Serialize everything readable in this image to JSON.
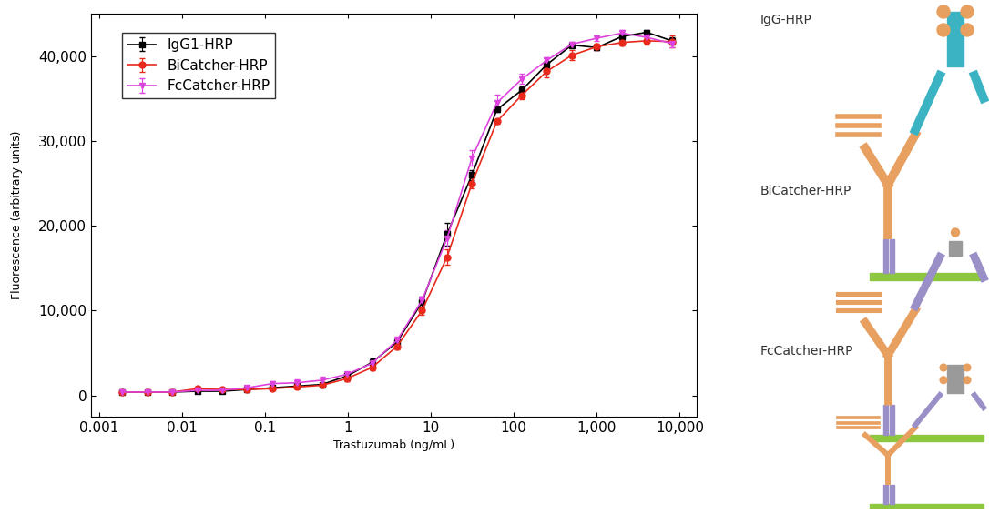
{
  "chart_data": {
    "type": "line",
    "x_label": "Trastuzumab (ng/mL)",
    "y_label": "Fluorescence (arbitrary units)",
    "x": [
      0.00190735,
      0.0038147,
      0.00762939,
      0.0152588,
      0.0305176,
      0.0610352,
      0.12207,
      0.244141,
      0.488281,
      0.976563,
      1.95313,
      3.90625,
      7.8125,
      15.625,
      31.25,
      62.5,
      125,
      250,
      500,
      1000,
      2000,
      4000,
      8000
    ],
    "series": [
      {
        "name": "IgG1-HRP",
        "color": "#000000",
        "marker": "square",
        "values": [
          400,
          400,
          400,
          500,
          500,
          700,
          900,
          1100,
          1300,
          2300,
          3900,
          6300,
          11000,
          19000,
          26000,
          33700,
          36000,
          39000,
          41300,
          41000,
          42300,
          42800,
          41800
        ],
        "errors": [
          100,
          100,
          100,
          100,
          100,
          150,
          150,
          200,
          300,
          300,
          500,
          400,
          600,
          1300,
          600,
          300,
          400,
          400,
          300,
          300,
          400,
          300,
          400
        ]
      },
      {
        "name": "BiCatcher-HRP",
        "color": "#e8291c",
        "marker": "circle",
        "values": [
          400,
          400,
          400,
          800,
          700,
          700,
          800,
          1000,
          1200,
          2000,
          3300,
          5800,
          10000,
          16300,
          25000,
          32300,
          35400,
          38200,
          40100,
          41100,
          41600,
          41800,
          41700
        ],
        "errors": [
          100,
          100,
          100,
          100,
          100,
          100,
          150,
          200,
          200,
          300,
          300,
          400,
          500,
          900,
          600,
          300,
          500,
          700,
          600,
          400,
          400,
          400,
          700
        ]
      },
      {
        "name": "FcCatcher-HRP",
        "color": "#dd44dd",
        "marker": "triangle_down",
        "values": [
          400,
          400,
          400,
          600,
          600,
          900,
          1400,
          1500,
          1800,
          2500,
          3800,
          6500,
          11200,
          18500,
          28000,
          34500,
          37300,
          39500,
          41400,
          42100,
          42700,
          42200,
          41500
        ],
        "errors": [
          100,
          100,
          100,
          100,
          100,
          200,
          300,
          400,
          400,
          300,
          400,
          400,
          500,
          1000,
          900,
          1000,
          600,
          300,
          300,
          300,
          400,
          300,
          500
        ]
      }
    ],
    "log": "x",
    "xlim": [
      0.0008,
      16000
    ],
    "xticks": [
      0.001,
      0.01,
      0.1,
      1,
      10,
      100,
      {
        "value": 1000,
        "label": "1,000"
      },
      {
        "value": 10000,
        "label": "10,000"
      }
    ],
    "ylim": [
      -2500,
      45000
    ],
    "yticks": [
      0,
      {
        "value": 10000,
        "label": "10,000"
      },
      {
        "value": 20000,
        "label": "20,000"
      },
      {
        "value": 30000,
        "label": "30,000"
      },
      {
        "value": 40000,
        "label": "40,000"
      }
    ],
    "grid": false,
    "legend": "upper left"
  },
  "schematic": {
    "panels": [
      {
        "label": "IgG-HRP"
      },
      {
        "label": "BiCatcher-HRP"
      },
      {
        "label": "FcCatcher-HRP"
      }
    ]
  }
}
